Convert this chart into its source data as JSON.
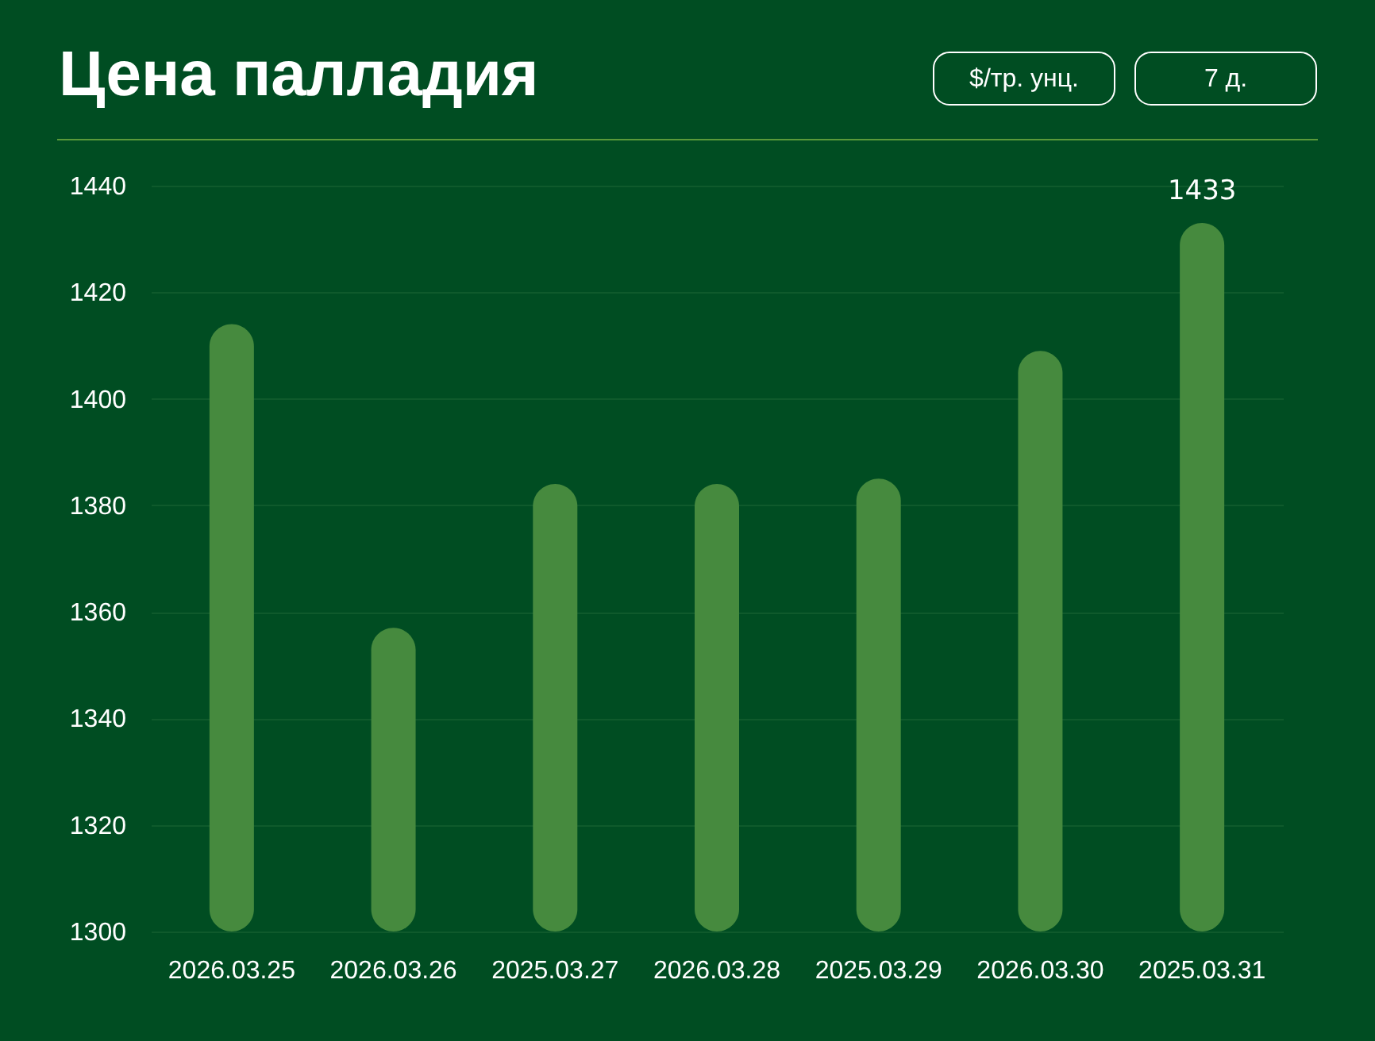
{
  "chart_data": {
    "type": "bar",
    "title": "Цена палладия",
    "categories": [
      "2026.03.25",
      "2026.03.26",
      "2025.03.27",
      "2026.03.28",
      "2025.03.29",
      "2026.03.30",
      "2025.03.31"
    ],
    "values": [
      1414,
      1357,
      1384,
      1384,
      1385,
      1409,
      1433
    ],
    "value_labels": [
      null,
      null,
      null,
      null,
      null,
      null,
      "1433"
    ],
    "color": "#468a3e",
    "ylim": [
      1300,
      1440
    ],
    "yticks": [
      1300,
      1320,
      1340,
      1360,
      1380,
      1400,
      1420,
      1440
    ],
    "grid": "y",
    "annotations": [
      "$/тр. унц.",
      "7 д."
    ]
  }
}
